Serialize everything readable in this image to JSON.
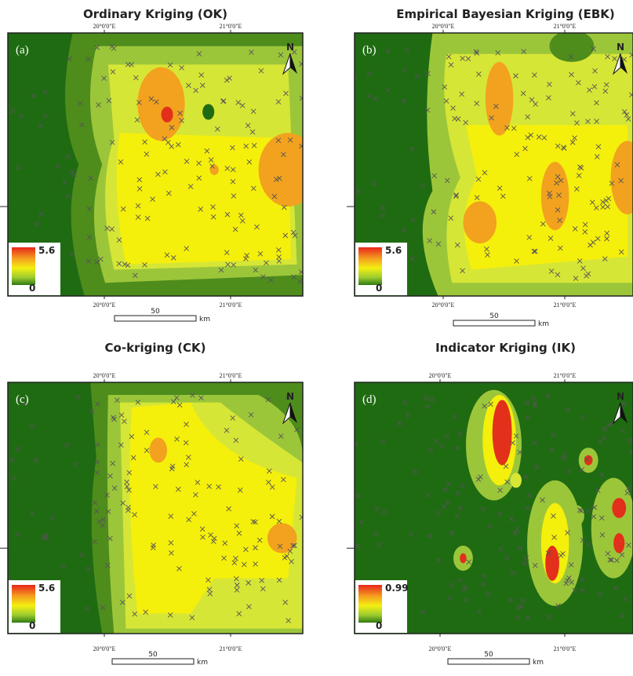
{
  "panels": [
    {
      "title": "Ordinary Kriging (OK)",
      "label": "(a)",
      "top_ticks": [
        "20°0'0\"E",
        "21°0'0\"E"
      ],
      "bottom_ticks": [
        "20°0'0\"E",
        "21°0'0\"E"
      ],
      "scale": "50",
      "unit": "km",
      "legend_max": "5.6",
      "legend_min": "0",
      "north": "N"
    },
    {
      "title": "Empirical Bayesian Kriging (EBK)",
      "label": "(b)",
      "top_ticks": [
        "20°0'0\"E",
        "21°0'0\"E"
      ],
      "bottom_ticks": [
        "20°0'0\"E",
        "21°0'0\"E"
      ],
      "scale": "50",
      "unit": "km",
      "legend_max": "5.6",
      "legend_min": "0",
      "north": "N"
    },
    {
      "title": "Co-kriging (CK)",
      "label": "(c)",
      "top_ticks": [
        "20°0'0\"E",
        "21°0'0\"E"
      ],
      "bottom_ticks": [
        "20°0'0\"E",
        "21°0'0\"E"
      ],
      "scale": "50",
      "unit": "km",
      "legend_max": "5.6",
      "legend_min": "0",
      "north": "N"
    },
    {
      "title": "Indicator Kriging (IK)",
      "label": "(d)",
      "top_ticks": [
        "20°0'0\"E",
        "21°0'0\"E"
      ],
      "bottom_ticks": [
        "20°0'0\"E",
        "21°0'0\"E"
      ],
      "scale": "50",
      "unit": "km",
      "legend_max": "0.99",
      "legend_min": "0",
      "north": "N"
    }
  ]
}
